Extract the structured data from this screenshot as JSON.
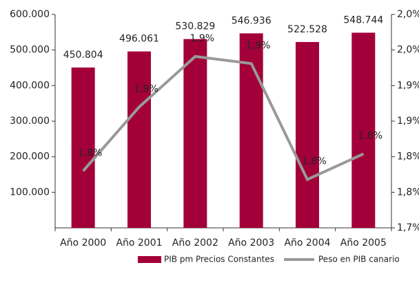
{
  "chart_data": {
    "type": "bar",
    "categories": [
      "Año 2000",
      "Año 2001",
      "Año 2002",
      "Año 2003",
      "Año 2004",
      "Año 2005"
    ],
    "series": [
      {
        "name": "PIB pm Precios Constantes",
        "color": "#a3003a",
        "type": "bar",
        "values": [
          450804,
          496061,
          530829,
          546936,
          522528,
          548744
        ],
        "value_labels": [
          "450.804",
          "496.061",
          "530.829",
          "546.936",
          "522.528",
          "548.744"
        ]
      },
      {
        "name": "Peso en PIB canario",
        "color": "#999999",
        "type": "line",
        "axis": "y2",
        "values": [
          1.78,
          1.87,
          1.941,
          1.931,
          1.768,
          1.804
        ],
        "value_labels": [
          "1,8%",
          "1,9%",
          "1,9%",
          "1,9%",
          "1,8%",
          "1,8%"
        ]
      }
    ],
    "ylim": [
      0,
      600000
    ],
    "yticks": [
      {
        "value": 100000,
        "label": "100.000"
      },
      {
        "value": 200000,
        "label": "200.000"
      },
      {
        "value": 300000,
        "label": "300.000"
      },
      {
        "value": 400000,
        "label": "400.000"
      },
      {
        "value": 500000,
        "label": "500.000"
      },
      {
        "value": 600000,
        "label": "600.000"
      }
    ],
    "y2lim": [
      1.7,
      2.0
    ],
    "y2ticks": [
      {
        "value": 1.7,
        "label": "1,7%"
      },
      {
        "value": 1.75,
        "label": "1,8%"
      },
      {
        "value": 1.8,
        "label": "1,8%"
      },
      {
        "value": 1.85,
        "label": "1,9%"
      },
      {
        "value": 1.9,
        "label": "1,9%"
      },
      {
        "value": 1.95,
        "label": "2,0%"
      },
      {
        "value": 2.0,
        "label": "2,0%"
      }
    ],
    "legend": "bottom"
  }
}
